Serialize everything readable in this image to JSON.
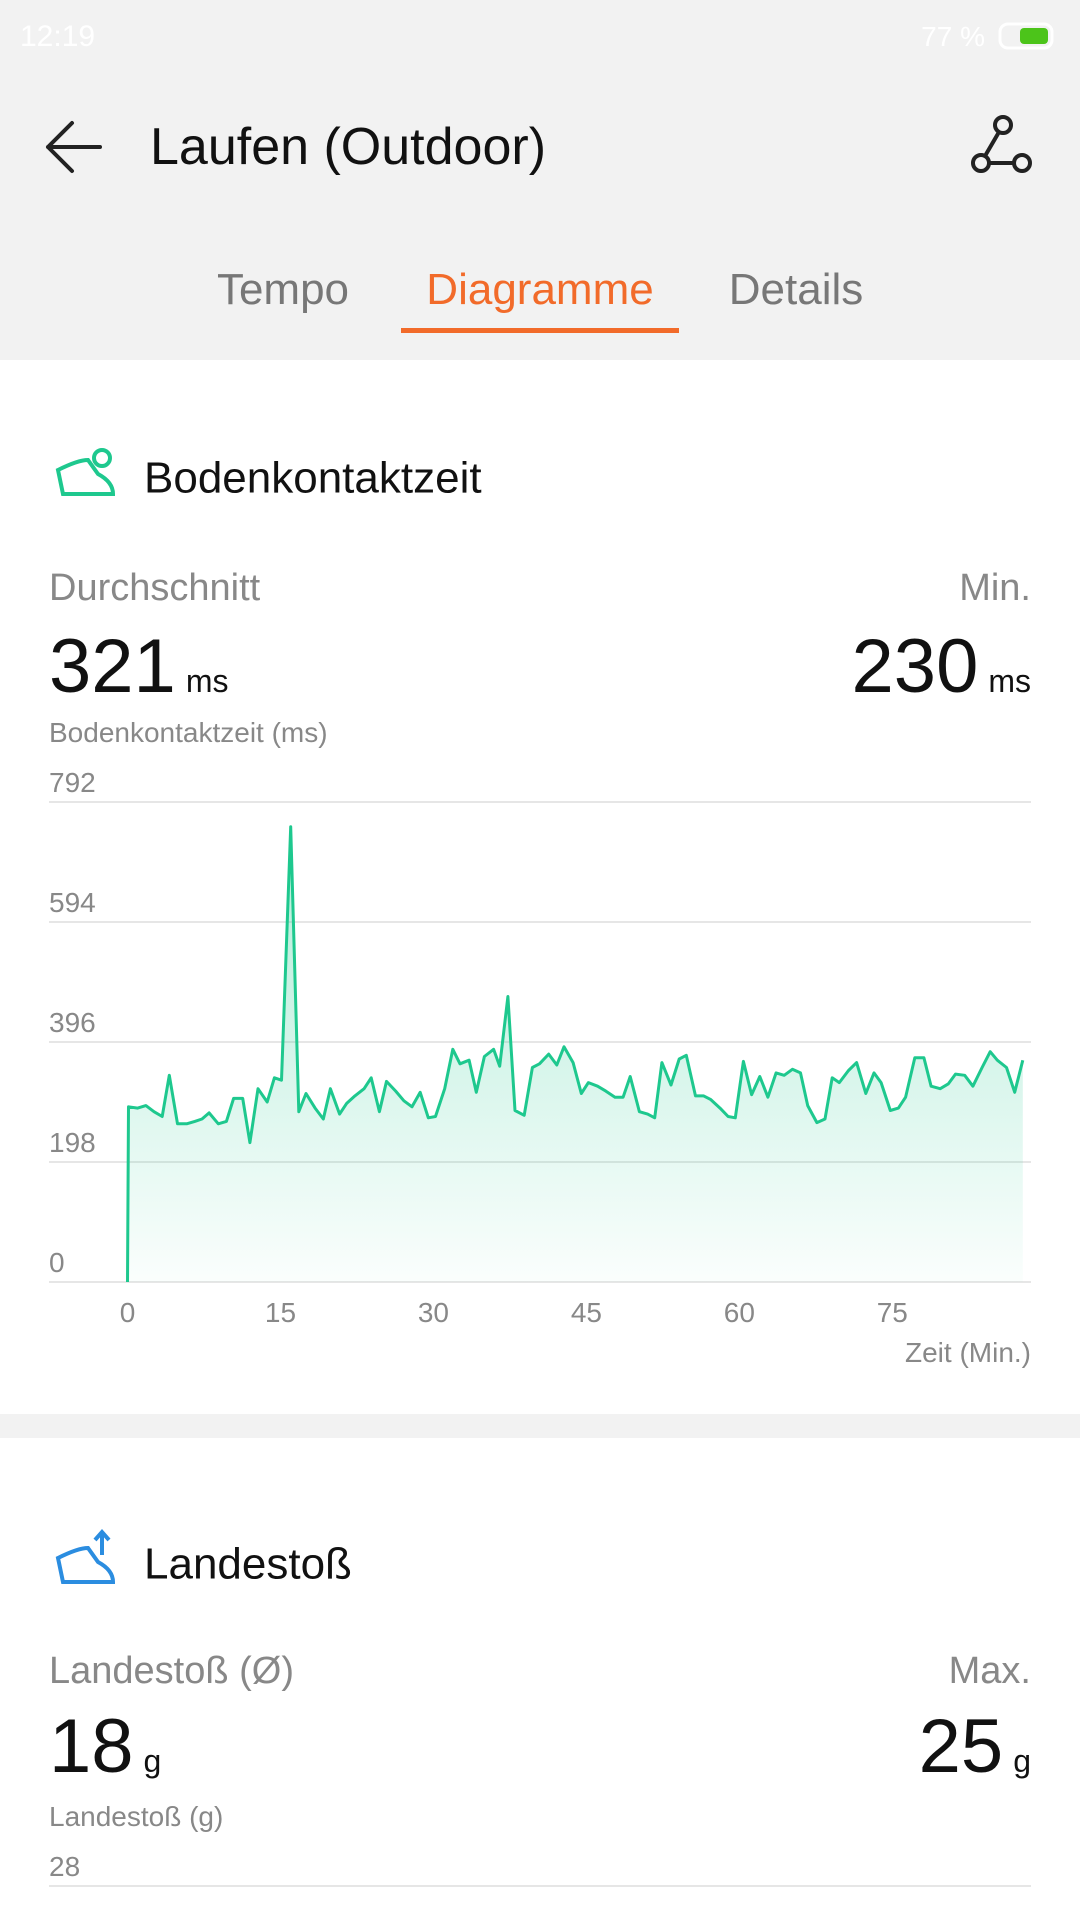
{
  "status_bar": {
    "time": "12:19",
    "battery": "77 %"
  },
  "header": {
    "title": "Laufen (Outdoor)"
  },
  "tabs": {
    "items": [
      "Tempo",
      "Diagramme",
      "Details"
    ],
    "active": 1
  },
  "sections": [
    {
      "title": "Bodenkontaktzeit",
      "stats": [
        {
          "label": "Durchschnitt",
          "value": 321,
          "unit": "ms"
        },
        {
          "label": "Min.",
          "value": 230,
          "unit": "ms"
        }
      ]
    },
    {
      "title": "Landestoß",
      "stats": [
        {
          "label": "Landestoß (Ø)",
          "value": 18,
          "unit": "g"
        },
        {
          "label": "Max.",
          "value": 25,
          "unit": "g"
        }
      ],
      "chart_label": "Landestoß (g)",
      "top_tick": 28
    }
  ],
  "chart_data": {
    "type": "area",
    "ylabel": "Bodenkontaktzeit (ms)",
    "xlabel": "Zeit (Min.)",
    "color": "#1ec88e",
    "x": [
      0,
      0.1,
      1.0,
      1.8,
      2.6,
      3.4,
      4.1,
      4.9,
      5.8,
      6.6,
      7.3,
      8.0,
      8.9,
      9.7,
      10.4,
      11.3,
      12.0,
      12.8,
      13.7,
      14.4,
      15.1,
      16.0,
      16.8,
      17.5,
      18.4,
      19.2,
      19.9,
      20.8,
      21.5,
      22.3,
      23.2,
      23.9,
      24.7,
      25.4,
      26.3,
      27.1,
      27.9,
      28.7,
      29.5,
      30.2,
      31.1,
      31.9,
      32.6,
      33.5,
      34.2,
      35.0,
      35.9,
      36.5,
      37.3,
      38.0,
      38.9,
      39.7,
      40.4,
      41.3,
      42.1,
      42.8,
      43.7,
      44.5,
      45.2,
      46.1,
      46.9,
      47.8,
      48.6,
      49.3,
      50.2,
      51.0,
      51.7,
      52.4,
      53.3,
      54.1,
      54.8,
      55.7,
      56.5,
      57.2,
      58.1,
      58.9,
      59.6,
      60.4,
      61.2,
      62.0,
      62.8,
      63.6,
      64.4,
      65.2,
      66.0,
      66.7,
      67.6,
      68.4,
      69.1,
      69.8,
      70.7,
      71.5,
      72.4,
      73.2,
      73.9,
      74.8,
      75.6,
      76.3,
      77.2,
      78.1,
      78.8,
      79.7,
      80.5,
      81.2,
      82.1,
      82.9,
      83.8,
      84.6,
      85.3,
      86.2,
      87.0,
      87.8
    ],
    "values": [
      0,
      289,
      287,
      291,
      281,
      273,
      341,
      261,
      261,
      265,
      269,
      279,
      261,
      265,
      303,
      303,
      230,
      319,
      297,
      337,
      333,
      751,
      281,
      311,
      287,
      269,
      319,
      277,
      295,
      307,
      319,
      337,
      281,
      331,
      315,
      299,
      289,
      313,
      271,
      273,
      319,
      384,
      360,
      366,
      313,
      372,
      384,
      356,
      471,
      283,
      275,
      354,
      360,
      376,
      358,
      388,
      362,
      311,
      329,
      323,
      315,
      305,
      305,
      339,
      281,
      277,
      271,
      362,
      325,
      368,
      374,
      307,
      307,
      301,
      287,
      273,
      271,
      364,
      309,
      339,
      305,
      345,
      341,
      351,
      345,
      291,
      263,
      269,
      337,
      329,
      349,
      362,
      311,
      345,
      329,
      283,
      287,
      305,
      370,
      370,
      323,
      319,
      327,
      343,
      341,
      323,
      354,
      380,
      366,
      354,
      313,
      366
    ],
    "xlim": [
      -7.7,
      88.6
    ],
    "ylim": [
      0,
      792
    ],
    "xticks": [
      0,
      15,
      30,
      45,
      60,
      75
    ],
    "yticks": [
      0,
      198,
      396,
      594,
      792
    ],
    "grid": true
  }
}
